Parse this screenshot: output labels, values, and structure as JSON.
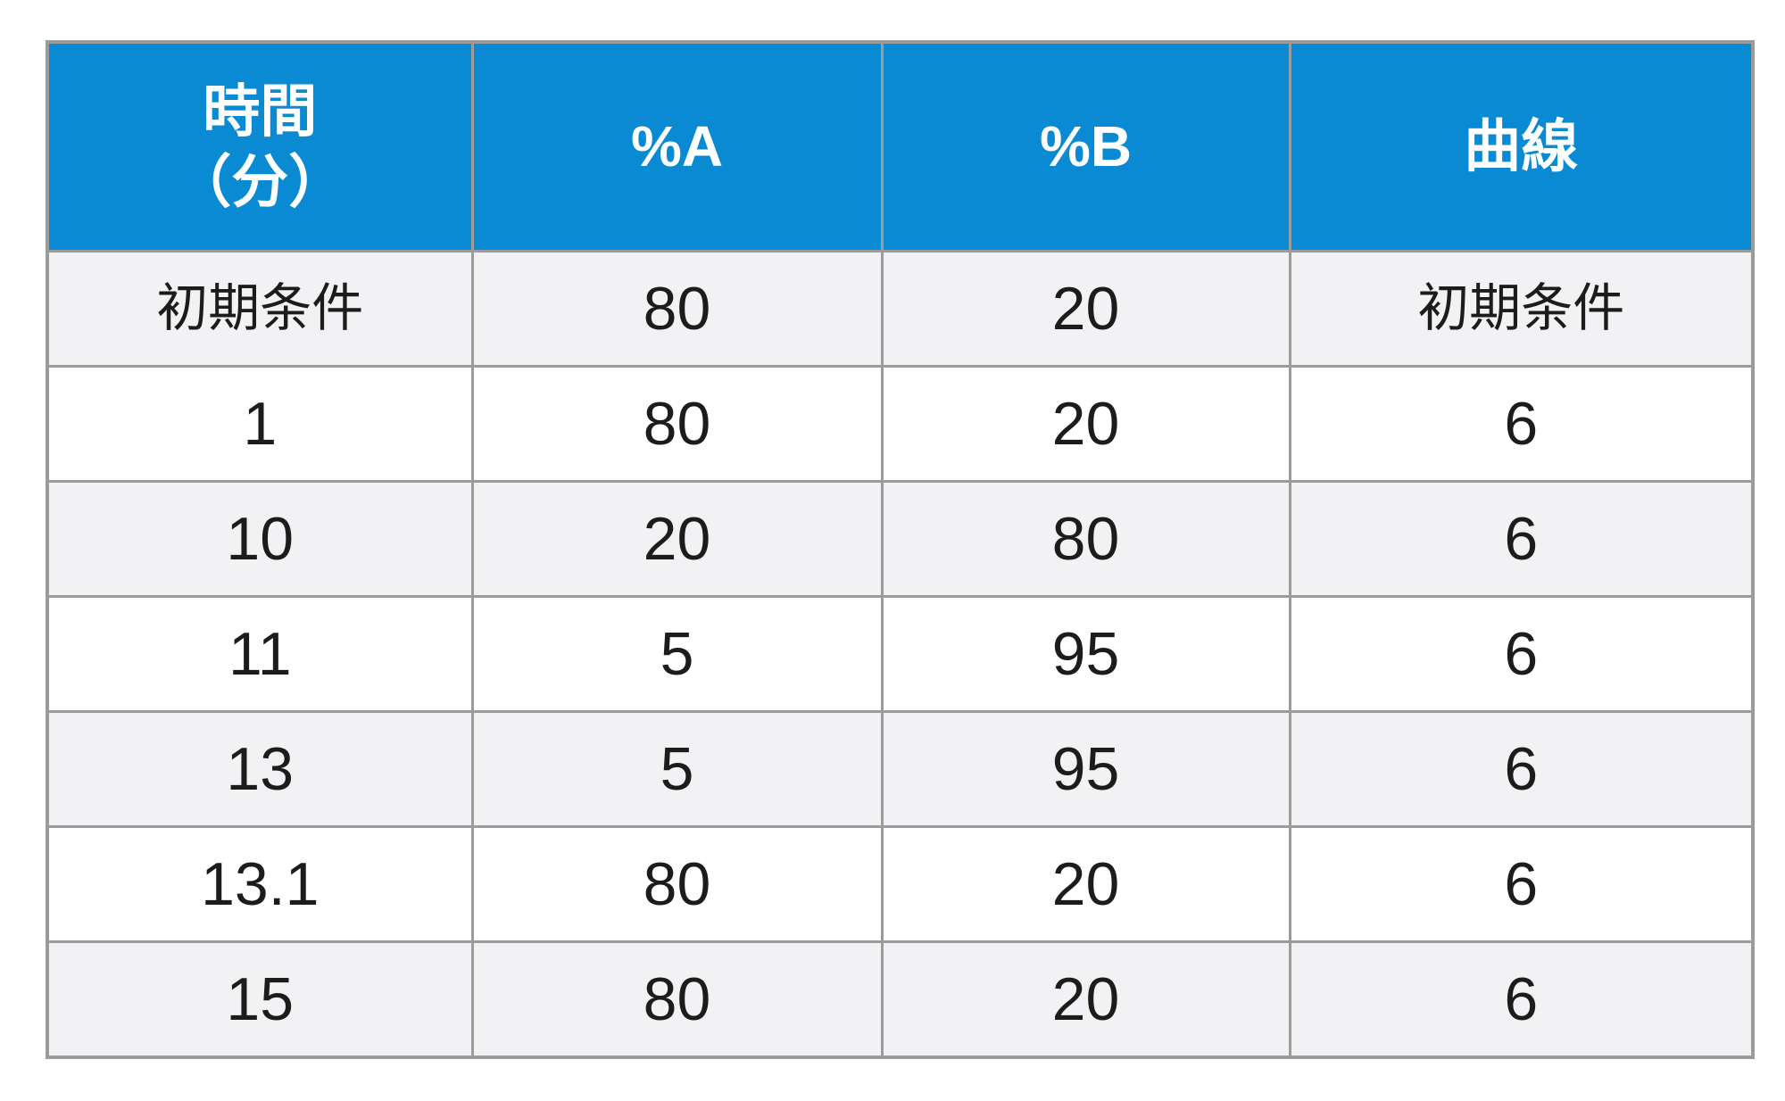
{
  "table": {
    "headers": {
      "time": {
        "line1": "時間",
        "line2": "（分）"
      },
      "percent_a": "%A",
      "percent_b": "%B",
      "curve": "曲線"
    },
    "rows": [
      {
        "time": "初期条件",
        "percent_a": "80",
        "percent_b": "20",
        "curve": "初期条件"
      },
      {
        "time": "1",
        "percent_a": "80",
        "percent_b": "20",
        "curve": "6"
      },
      {
        "time": "10",
        "percent_a": "20",
        "percent_b": "80",
        "curve": "6"
      },
      {
        "time": "11",
        "percent_a": "5",
        "percent_b": "95",
        "curve": "6"
      },
      {
        "time": "13",
        "percent_a": "5",
        "percent_b": "95",
        "curve": "6"
      },
      {
        "time": "13.1",
        "percent_a": "80",
        "percent_b": "20",
        "curve": "6"
      },
      {
        "time": "15",
        "percent_a": "80",
        "percent_b": "20",
        "curve": "6"
      }
    ]
  },
  "colors": {
    "header_bg": "#0A8AD2",
    "header_text": "#FFFFFF",
    "row_alt_bg": "#F2F2F4",
    "row_bg": "#FFFFFF",
    "border": "#9B9B9B",
    "text": "#1C1C1C"
  }
}
